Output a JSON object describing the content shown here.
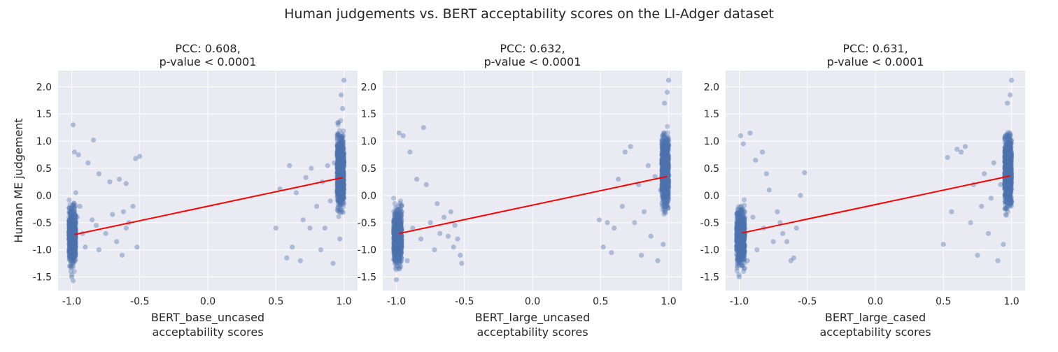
{
  "figure": {
    "suptitle": "Human judgements vs. BERT acceptability scores on the LI-Adger dataset"
  },
  "style": {
    "background": "#eaeaf2",
    "grid_color": "#ffffff",
    "point_color": "#4c72b0",
    "line_color": "#ff0000"
  },
  "chart_data": [
    {
      "type": "scatter",
      "title_line1": "PCC: 0.608,",
      "title_line2": "p-value < 0.0001",
      "xlabel_line1": "BERT_base_uncased",
      "xlabel_line2": "acceptability scores",
      "ylabel": "Human ME judgement",
      "xlim": [
        -1.1,
        1.1
      ],
      "ylim": [
        -1.75,
        2.3
      ],
      "xticks": [
        "-1.0",
        "-0.5",
        "0.0",
        "0.5",
        "1.0"
      ],
      "yticks": [
        "-1.5",
        "-1.0",
        "-0.5",
        "0.0",
        "0.5",
        "1.0",
        "1.5",
        "2.0"
      ],
      "grid": true,
      "regression_line": {
        "x": [
          -0.98,
          0.99
        ],
        "y": [
          -0.72,
          0.33
        ]
      },
      "points_summary": {
        "cluster_near_minus1": {
          "x_range": [
            -1.02,
            -0.97
          ],
          "y_range": [
            -1.55,
            1.3
          ]
        },
        "cluster_near_plus1": {
          "x_range": [
            0.95,
            1.0
          ],
          "y_range": [
            -1.3,
            2.15
          ]
        }
      },
      "sample_points": [
        [
          -1.0,
          -0.85
        ],
        [
          -0.99,
          1.3
        ],
        [
          -0.98,
          0.8
        ],
        [
          -0.95,
          0.75
        ],
        [
          -0.88,
          0.6
        ],
        [
          -0.84,
          1.02
        ],
        [
          -0.8,
          0.4
        ],
        [
          -0.72,
          0.25
        ],
        [
          -0.6,
          0.22
        ],
        [
          -0.55,
          -0.2
        ],
        [
          -0.5,
          0.72
        ],
        [
          -0.52,
          -0.95
        ],
        [
          -0.53,
          0.68
        ],
        [
          -0.58,
          -0.5
        ],
        [
          -0.6,
          -0.6
        ],
        [
          -0.63,
          -1.1
        ],
        [
          -0.7,
          -0.35
        ],
        [
          -0.75,
          -0.7
        ],
        [
          -0.8,
          -1.0
        ],
        [
          -0.85,
          -0.45
        ],
        [
          -0.9,
          -0.95
        ],
        [
          -0.92,
          -0.7
        ],
        [
          -0.96,
          -0.4
        ],
        [
          -1.0,
          -1.5
        ],
        [
          -1.01,
          -1.3
        ],
        [
          -0.99,
          -1.57
        ],
        [
          -0.97,
          0.05
        ],
        [
          -0.94,
          -0.2
        ],
        [
          -0.82,
          -0.55
        ],
        [
          -0.67,
          -0.85
        ],
        [
          -0.65,
          0.3
        ],
        [
          -0.62,
          -0.3
        ],
        [
          0.5,
          -0.6
        ],
        [
          0.53,
          0.12
        ],
        [
          0.58,
          -1.15
        ],
        [
          0.6,
          0.55
        ],
        [
          0.62,
          -0.95
        ],
        [
          0.65,
          0.05
        ],
        [
          0.68,
          -1.2
        ],
        [
          0.7,
          -0.45
        ],
        [
          0.72,
          0.33
        ],
        [
          0.75,
          -0.6
        ],
        [
          0.76,
          0.5
        ],
        [
          0.8,
          -0.2
        ],
        [
          0.83,
          -1.0
        ],
        [
          0.84,
          0.25
        ],
        [
          0.86,
          -0.6
        ],
        [
          0.88,
          0.55
        ],
        [
          0.9,
          -0.1
        ],
        [
          0.92,
          -1.25
        ],
        [
          0.93,
          0.6
        ],
        [
          0.95,
          0.1
        ],
        [
          0.97,
          -0.8
        ],
        [
          1.0,
          2.12
        ],
        [
          0.98,
          1.85
        ],
        [
          0.99,
          1.6
        ]
      ]
    },
    {
      "type": "scatter",
      "title_line1": "PCC: 0.632,",
      "title_line2": "p-value < 0.0001",
      "xlabel_line1": "BERT_large_uncased",
      "xlabel_line2": "acceptability scores",
      "ylabel": "",
      "xlim": [
        -1.1,
        1.1
      ],
      "ylim": [
        -1.75,
        2.3
      ],
      "xticks": [
        "-1.0",
        "-0.5",
        "0.0",
        "0.5",
        "1.0"
      ],
      "yticks": [
        "-1.5",
        "-1.0",
        "-0.5",
        "0.0",
        "0.5",
        "1.0",
        "1.5",
        "2.0"
      ],
      "grid": true,
      "regression_line": {
        "x": [
          -0.98,
          0.99
        ],
        "y": [
          -0.7,
          0.35
        ]
      },
      "points_summary": {
        "cluster_near_minus1": {
          "x_range": [
            -1.02,
            -0.96
          ],
          "y_range": [
            -1.58,
            1.2
          ]
        },
        "cluster_near_plus1": {
          "x_range": [
            0.95,
            1.0
          ],
          "y_range": [
            -1.3,
            2.15
          ]
        }
      },
      "sample_points": [
        [
          -1.0,
          -0.9
        ],
        [
          -0.98,
          1.15
        ],
        [
          -0.95,
          1.1
        ],
        [
          -0.9,
          0.8
        ],
        [
          -0.8,
          1.25
        ],
        [
          -0.85,
          0.3
        ],
        [
          -0.78,
          0.2
        ],
        [
          -0.7,
          -0.15
        ],
        [
          -0.65,
          -0.4
        ],
        [
          -0.6,
          -0.3
        ],
        [
          -0.57,
          -0.55
        ],
        [
          -0.55,
          -0.8
        ],
        [
          -0.53,
          -1.1
        ],
        [
          -0.52,
          -1.25
        ],
        [
          -0.58,
          -0.95
        ],
        [
          -0.62,
          -0.75
        ],
        [
          -0.68,
          -0.7
        ],
        [
          -0.72,
          -1.0
        ],
        [
          -0.75,
          -0.5
        ],
        [
          -0.82,
          -0.8
        ],
        [
          -0.88,
          -0.6
        ],
        [
          -0.92,
          -1.2
        ],
        [
          -0.96,
          -0.3
        ],
        [
          -1.0,
          -1.55
        ],
        [
          0.49,
          -0.45
        ],
        [
          0.52,
          -0.95
        ],
        [
          0.55,
          -0.5
        ],
        [
          0.58,
          -1.05
        ],
        [
          0.6,
          -0.6
        ],
        [
          0.63,
          0.3
        ],
        [
          0.66,
          -0.2
        ],
        [
          0.68,
          0.8
        ],
        [
          0.72,
          0.9
        ],
        [
          0.75,
          -0.5
        ],
        [
          0.78,
          0.2
        ],
        [
          0.8,
          -1.1
        ],
        [
          0.82,
          -0.3
        ],
        [
          0.85,
          0.55
        ],
        [
          0.87,
          -0.75
        ],
        [
          0.9,
          0.35
        ],
        [
          0.92,
          -1.2
        ],
        [
          0.94,
          0.1
        ],
        [
          0.96,
          -0.9
        ],
        [
          0.97,
          1.7
        ],
        [
          1.0,
          2.12
        ],
        [
          0.99,
          1.9
        ]
      ]
    },
    {
      "type": "scatter",
      "title_line1": "PCC: 0.631,",
      "title_line2": "p-value < 0.0001",
      "xlabel_line1": "BERT_large_cased",
      "xlabel_line2": "acceptability scores",
      "ylabel": "",
      "xlim": [
        -1.1,
        1.1
      ],
      "ylim": [
        -1.75,
        2.3
      ],
      "xticks": [
        "-1.0",
        "-0.5",
        "0.0",
        "0.5",
        "1.0"
      ],
      "yticks": [
        "-1.5",
        "-1.0",
        "-0.5",
        "0.0",
        "0.5",
        "1.0",
        "1.5",
        "2.0"
      ],
      "grid": true,
      "regression_line": {
        "x": [
          -0.98,
          0.99
        ],
        "y": [
          -0.69,
          0.36
        ]
      },
      "points_summary": {
        "cluster_near_minus1": {
          "x_range": [
            -1.02,
            -0.96
          ],
          "y_range": [
            -1.55,
            1.15
          ]
        },
        "cluster_near_plus1": {
          "x_range": [
            0.95,
            1.0
          ],
          "y_range": [
            -1.3,
            2.15
          ]
        }
      },
      "sample_points": [
        [
          -1.0,
          -0.9
        ],
        [
          -0.99,
          1.1
        ],
        [
          -0.97,
          0.95
        ],
        [
          -0.92,
          1.15
        ],
        [
          -0.88,
          0.65
        ],
        [
          -0.83,
          0.8
        ],
        [
          -0.8,
          0.4
        ],
        [
          -0.78,
          0.1
        ],
        [
          -0.72,
          -0.3
        ],
        [
          -0.68,
          -0.7
        ],
        [
          -0.65,
          -0.85
        ],
        [
          -0.6,
          -1.15
        ],
        [
          -0.58,
          -0.6
        ],
        [
          -0.55,
          0.0
        ],
        [
          -0.52,
          0.42
        ],
        [
          -0.62,
          -1.2
        ],
        [
          -0.7,
          -0.5
        ],
        [
          -0.75,
          -0.85
        ],
        [
          -0.82,
          -0.6
        ],
        [
          -0.87,
          -1.0
        ],
        [
          -0.9,
          -0.4
        ],
        [
          -0.94,
          -1.2
        ],
        [
          -0.96,
          -0.3
        ],
        [
          -1.0,
          -1.5
        ],
        [
          0.5,
          -0.9
        ],
        [
          0.53,
          0.7
        ],
        [
          0.56,
          -0.3
        ],
        [
          0.6,
          0.85
        ],
        [
          0.63,
          0.8
        ],
        [
          0.66,
          0.9
        ],
        [
          0.7,
          -0.5
        ],
        [
          0.72,
          0.2
        ],
        [
          0.75,
          -1.1
        ],
        [
          0.78,
          -0.2
        ],
        [
          0.8,
          0.4
        ],
        [
          0.83,
          -0.7
        ],
        [
          0.85,
          -0.05
        ],
        [
          0.87,
          0.6
        ],
        [
          0.9,
          -1.2
        ],
        [
          0.92,
          0.2
        ],
        [
          0.94,
          -0.9
        ],
        [
          0.96,
          0.5
        ],
        [
          0.97,
          1.7
        ],
        [
          1.0,
          2.12
        ],
        [
          0.99,
          1.85
        ]
      ]
    }
  ]
}
